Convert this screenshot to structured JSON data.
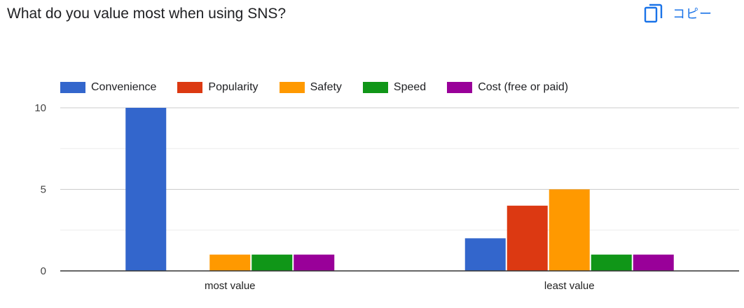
{
  "header": {
    "title": "What do you value most when using SNS?",
    "copy_label": "コピー",
    "copy_icon": "copy-icon"
  },
  "colors": {
    "accent": "#1a73e8",
    "Convenience": "#3366cc",
    "Popularity": "#dc3912",
    "Safety": "#ff9900",
    "Speed": "#109618",
    "Cost (free or paid)": "#990099"
  },
  "chart_data": {
    "type": "bar",
    "categories": [
      "most value",
      "least value"
    ],
    "series": [
      {
        "name": "Convenience",
        "values": [
          10,
          2
        ]
      },
      {
        "name": "Popularity",
        "values": [
          0,
          4
        ]
      },
      {
        "name": "Safety",
        "values": [
          1,
          5
        ]
      },
      {
        "name": "Speed",
        "values": [
          1,
          1
        ]
      },
      {
        "name": "Cost (free or paid)",
        "values": [
          1,
          1
        ]
      }
    ],
    "yticks": [
      0,
      5,
      10
    ],
    "ylim": [
      0,
      10
    ],
    "grid": true,
    "legend_position": "top-left"
  }
}
